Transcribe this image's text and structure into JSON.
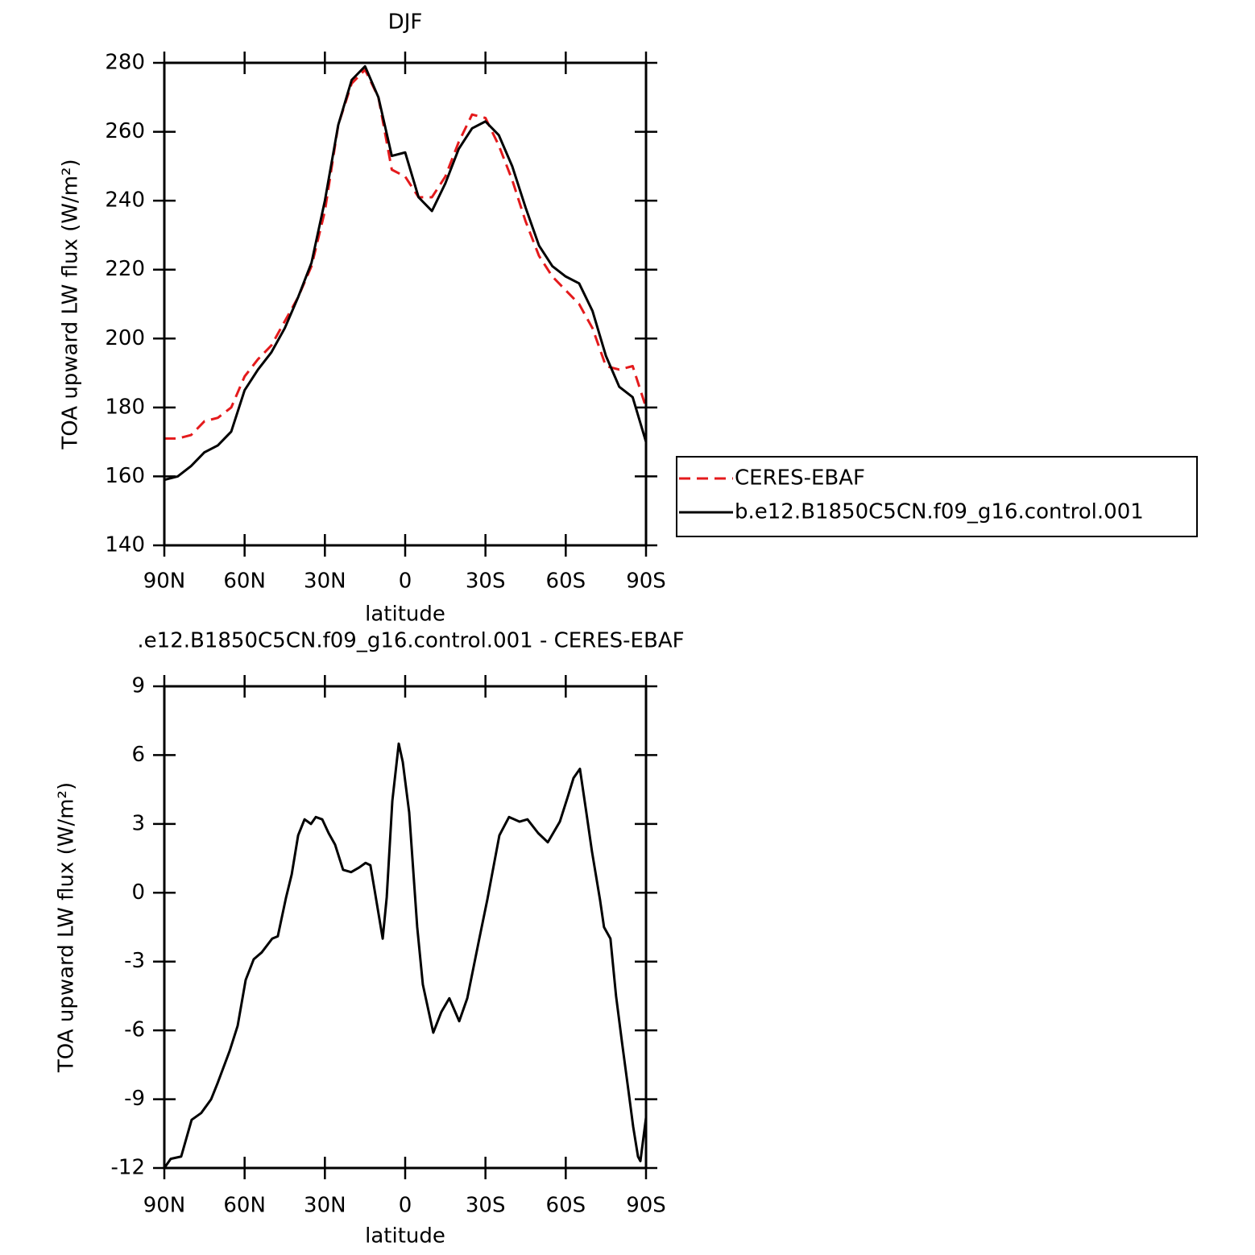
{
  "chart_data": [
    {
      "type": "line",
      "title": "DJF",
      "xlabel": "latitude",
      "ylabel": "TOA upward LW flux (W/m²)",
      "x": [
        90,
        85,
        80,
        75,
        70,
        65,
        60,
        55,
        50,
        45,
        40,
        35,
        30,
        25,
        20,
        15,
        10,
        5,
        0,
        -5,
        -10,
        -15,
        -20,
        -25,
        -30,
        -35,
        -40,
        -45,
        -50,
        -55,
        -60,
        -65,
        -70,
        -75,
        -80,
        -85,
        -90
      ],
      "series": [
        {
          "name": "CERES-EBAF",
          "color": "#e41a1c",
          "linestyle": "dashed",
          "values": [
            171,
            171,
            172,
            176,
            177,
            180,
            189,
            194,
            198,
            205,
            212,
            221,
            237,
            262,
            274,
            278,
            270,
            249,
            247,
            241,
            241,
            247,
            257,
            265,
            264,
            256,
            246,
            234,
            224,
            218,
            214,
            210,
            203,
            192,
            191,
            192,
            180
          ]
        },
        {
          "name": "b.e12.B1850C5CN.f09_g16.control.001",
          "color": "#000000",
          "linestyle": "solid",
          "values": [
            159,
            160,
            163,
            167,
            169,
            173,
            185,
            191,
            196,
            203,
            212,
            222,
            240,
            262,
            275,
            279,
            270,
            253,
            254,
            241,
            237,
            245,
            255,
            261,
            263,
            259,
            250,
            238,
            227,
            221,
            218,
            216,
            208,
            195,
            186,
            183,
            170
          ]
        }
      ],
      "xlim": [
        90,
        -90
      ],
      "xticks": [
        {
          "value": 90,
          "label": "90N"
        },
        {
          "value": 60,
          "label": "60N"
        },
        {
          "value": 30,
          "label": "30N"
        },
        0,
        {
          "value": -30,
          "label": "30S"
        },
        {
          "value": -60,
          "label": "60S"
        },
        {
          "value": -90,
          "label": "90S"
        }
      ],
      "ylim": [
        140,
        280
      ],
      "yticks": [
        140,
        160,
        180,
        200,
        220,
        240,
        260,
        280
      ],
      "legend": "outside right"
    },
    {
      "type": "line",
      "title": ".e12.B1850C5CN.f09_g16.control.001 - CERES-EBAF",
      "xlabel": "latitude",
      "ylabel": "TOA upward LW flux (W/m²)",
      "x": [
        90,
        87.6,
        83.7,
        79.8,
        76.2,
        72.5,
        70.1,
        65.6,
        62.6,
        59.6,
        56.6,
        53.6,
        49.7,
        47.6,
        44.5,
        42.4,
        40,
        37.6,
        35.2,
        33.4,
        31,
        28.6,
        26.2,
        23.2,
        20.2,
        17.2,
        14.8,
        13,
        11.4,
        8.4,
        6.9,
        4.8,
        2.4,
        0.9,
        -1.5,
        -4.5,
        -6.6,
        -10.5,
        -13.5,
        -16.5,
        -20.2,
        -23.2,
        -27.7,
        -30.7,
        -35.2,
        -38.8,
        -42.7,
        -45.7,
        -49.7,
        -53.3,
        -57.8,
        -60.8,
        -62.9,
        -65.3,
        -67.7,
        -69.8,
        -72.8,
        -74.3,
        -76.7,
        -78.8,
        -81,
        -83.4,
        -85.2,
        -87,
        -87.9,
        -90
      ],
      "color": "#000000",
      "values": [
        -12,
        -11.6,
        -11.5,
        -9.9,
        -9.6,
        -9.0,
        -8.3,
        -6.9,
        -5.8,
        -3.8,
        -2.9,
        -2.6,
        -2.0,
        -1.9,
        -0.2,
        0.8,
        2.5,
        3.2,
        3.0,
        3.3,
        3.2,
        2.6,
        2.1,
        1.0,
        0.9,
        1.1,
        1.3,
        1.2,
        0.1,
        -2.0,
        -0.2,
        4.0,
        6.5,
        5.7,
        3.5,
        -1.5,
        -4.0,
        -6.1,
        -5.2,
        -4.6,
        -5.6,
        -4.6,
        -2.0,
        -0.3,
        2.5,
        3.3,
        3.1,
        3.2,
        2.6,
        2.2,
        3.1,
        4.2,
        5.0,
        5.4,
        3.5,
        1.8,
        -0.3,
        -1.5,
        -2.0,
        -4.5,
        -6.5,
        -8.6,
        -10.2,
        -11.5,
        -11.7,
        -9.8
      ],
      "xlim": [
        90,
        -90
      ],
      "xticks": [
        {
          "value": 90,
          "label": "90N"
        },
        {
          "value": 60,
          "label": "60N"
        },
        {
          "value": 30,
          "label": "30N"
        },
        0,
        {
          "value": -30,
          "label": "30S"
        },
        {
          "value": -60,
          "label": "60S"
        },
        {
          "value": -90,
          "label": "90S"
        }
      ],
      "ylim": [
        -12,
        9
      ],
      "yticks": [
        -12,
        -9,
        -6,
        -3,
        0,
        3,
        6,
        9
      ]
    }
  ]
}
